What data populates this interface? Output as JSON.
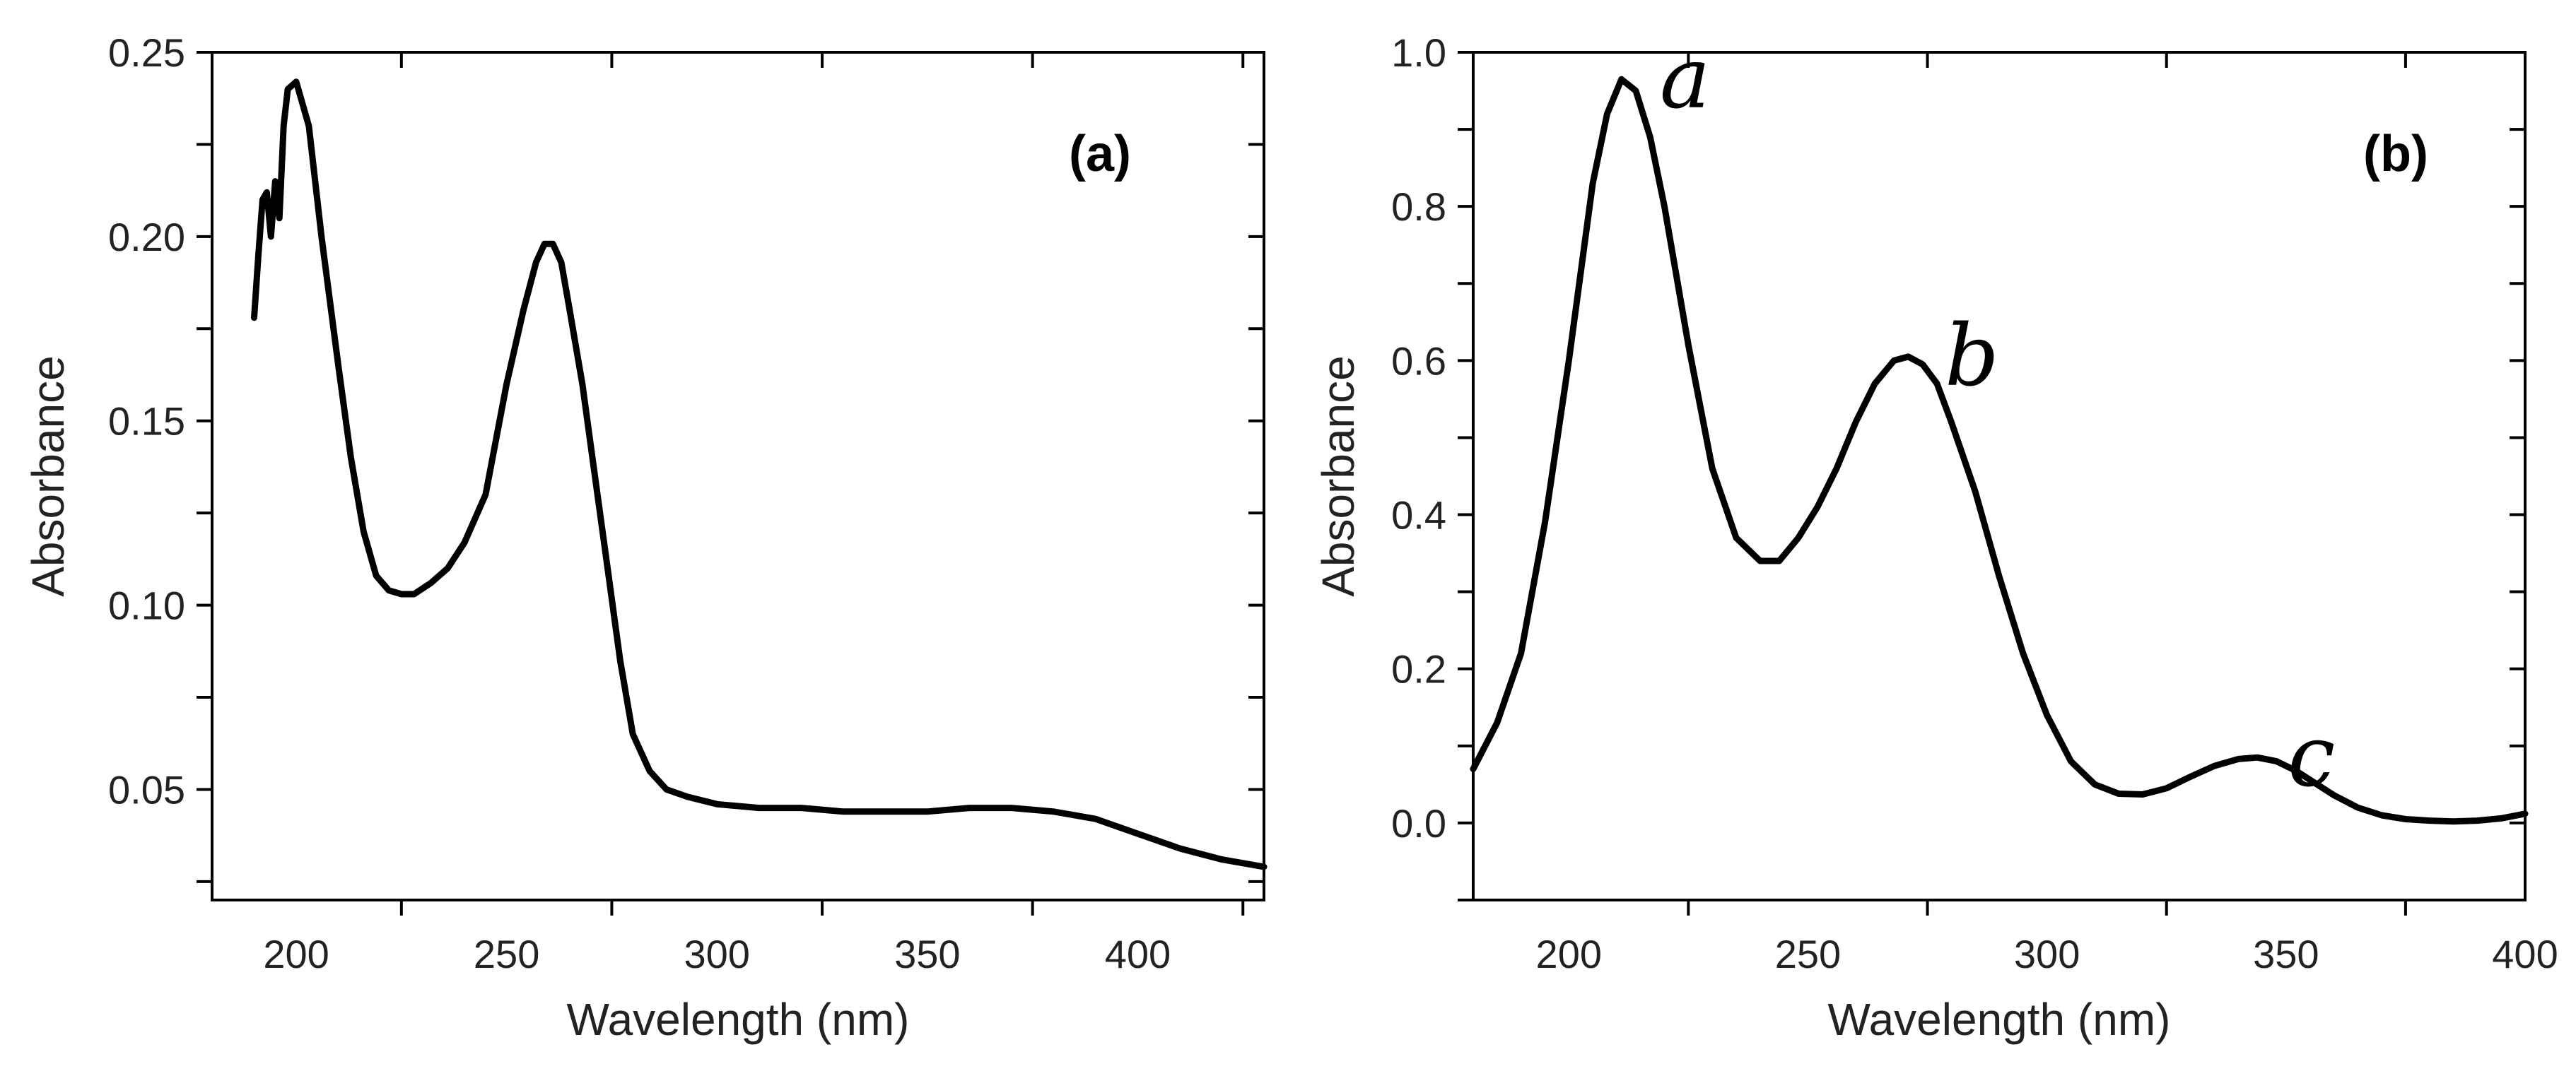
{
  "chart_data": [
    {
      "type": "line",
      "panel_label": "(a)",
      "xlabel": "Wavelength (nm)",
      "ylabel": "Absorbance",
      "xlim": [
        180,
        430
      ],
      "ylim": [
        0.02,
        0.25
      ],
      "xticks": [
        200,
        250,
        300,
        350,
        400
      ],
      "xtick_labels": [
        "200",
        "250",
        "300",
        "350",
        "400"
      ],
      "yticks": [
        0.05,
        0.1,
        0.15,
        0.2,
        0.25
      ],
      "ytick_labels": [
        "0.05",
        "0.10",
        "0.15",
        "0.20",
        "0.25"
      ],
      "grid": false,
      "annotations": [],
      "series": [
        {
          "name": "spectrum",
          "x": [
            190,
            191,
            192,
            193,
            194,
            195,
            196,
            197,
            198,
            200,
            203,
            206,
            210,
            213,
            216,
            219,
            222,
            225,
            228,
            232,
            236,
            240,
            245,
            250,
            254,
            257,
            259,
            261,
            263,
            265,
            268,
            271,
            274,
            277,
            280,
            284,
            288,
            293,
            300,
            310,
            320,
            330,
            340,
            350,
            360,
            370,
            380,
            390,
            400,
            410,
            420,
            430
          ],
          "y": [
            0.178,
            0.195,
            0.21,
            0.212,
            0.2,
            0.215,
            0.205,
            0.23,
            0.24,
            0.242,
            0.23,
            0.2,
            0.165,
            0.14,
            0.12,
            0.108,
            0.104,
            0.103,
            0.103,
            0.106,
            0.11,
            0.117,
            0.13,
            0.16,
            0.18,
            0.193,
            0.198,
            0.198,
            0.193,
            0.18,
            0.16,
            0.135,
            0.11,
            0.085,
            0.065,
            0.055,
            0.05,
            0.048,
            0.046,
            0.045,
            0.045,
            0.044,
            0.044,
            0.044,
            0.045,
            0.045,
            0.044,
            0.042,
            0.038,
            0.034,
            0.031,
            0.029
          ]
        }
      ]
    },
    {
      "type": "line",
      "panel_label": "(b)",
      "xlabel": "Wavelength (nm)",
      "ylabel": "Absorbance",
      "xlim": [
        180,
        400
      ],
      "ylim": [
        -0.1,
        1.0
      ],
      "xticks": [
        200,
        250,
        300,
        350,
        400
      ],
      "xtick_labels": [
        "200",
        "250",
        "300",
        "350",
        "400"
      ],
      "yticks": [
        0.0,
        0.2,
        0.4,
        0.6,
        0.8,
        1.0
      ],
      "ytick_labels": [
        "0.0",
        "0.2",
        "0.4",
        "0.6",
        "0.8",
        "1.0"
      ],
      "grid": false,
      "annotations": [
        {
          "text": "a",
          "x": 211,
          "y": 0.965
        },
        {
          "text": "b",
          "x": 271,
          "y": 0.605
        },
        {
          "text": "c",
          "x": 342,
          "y": 0.085
        }
      ],
      "series": [
        {
          "name": "spectrum",
          "x": [
            180,
            185,
            190,
            195,
            200,
            205,
            208,
            211,
            214,
            217,
            220,
            225,
            230,
            235,
            240,
            244,
            248,
            252,
            256,
            260,
            264,
            268,
            271,
            274,
            277,
            280,
            285,
            290,
            295,
            300,
            305,
            310,
            315,
            320,
            325,
            330,
            335,
            340,
            344,
            348,
            352,
            356,
            360,
            365,
            370,
            375,
            380,
            385,
            390,
            395,
            400
          ],
          "y": [
            0.07,
            0.13,
            0.22,
            0.39,
            0.6,
            0.83,
            0.92,
            0.965,
            0.95,
            0.89,
            0.8,
            0.62,
            0.46,
            0.37,
            0.34,
            0.34,
            0.37,
            0.41,
            0.46,
            0.52,
            0.57,
            0.6,
            0.605,
            0.595,
            0.57,
            0.52,
            0.43,
            0.32,
            0.22,
            0.14,
            0.08,
            0.05,
            0.038,
            0.037,
            0.045,
            0.06,
            0.074,
            0.083,
            0.085,
            0.08,
            0.068,
            0.052,
            0.036,
            0.02,
            0.01,
            0.005,
            0.003,
            0.002,
            0.003,
            0.006,
            0.012
          ]
        }
      ]
    }
  ]
}
